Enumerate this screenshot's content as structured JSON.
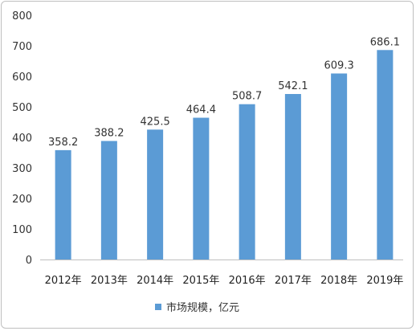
{
  "chart_data": {
    "type": "bar",
    "categories": [
      "2012年",
      "2013年",
      "2014年",
      "2015年",
      "2016年",
      "2017年",
      "2018年",
      "2019年"
    ],
    "series": [
      {
        "name": "市场规模，亿元",
        "values": [
          358.2,
          388.2,
          425.5,
          464.4,
          508.7,
          542.1,
          609.3,
          686.1
        ],
        "value_labels": [
          "358.2",
          "388.2",
          "425.5",
          "464.4",
          "508.7",
          "542.1",
          "609.3",
          "686.1"
        ],
        "color": "#5b9bd5"
      }
    ],
    "y_ticks": [
      "0",
      "100",
      "200",
      "300",
      "400",
      "500",
      "600",
      "700",
      "800"
    ],
    "ylim": [
      0,
      800
    ],
    "grid": false,
    "legend": "bottom-center",
    "title": "",
    "xlabel": "",
    "ylabel": ""
  },
  "colors": {
    "bar": "#5b9bd5",
    "axis": "#bfbfbf",
    "frame": "#bfbfbf"
  }
}
